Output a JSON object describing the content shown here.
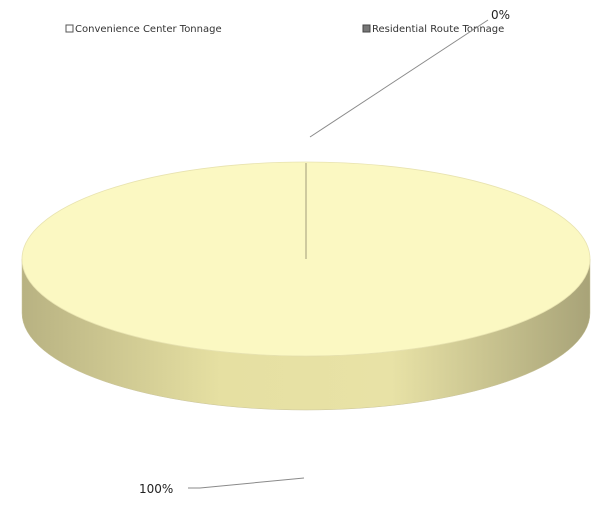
{
  "chart_data": {
    "type": "pie",
    "style": "3d",
    "categories": [
      "Convenience Center Tonnage",
      "Residential Route Tonnage"
    ],
    "values": [
      100,
      0
    ],
    "data_labels": [
      "100%",
      "0%"
    ],
    "legend_position": "top",
    "colors": {
      "slice_top": "#fbf8c2",
      "slice_side_light": "#e6e0a2",
      "slice_side_dark": "#b8b282",
      "leader_line": "#8a8a8a",
      "legend_swatch_1": "#ffffff",
      "legend_swatch_2": "#777777"
    }
  }
}
